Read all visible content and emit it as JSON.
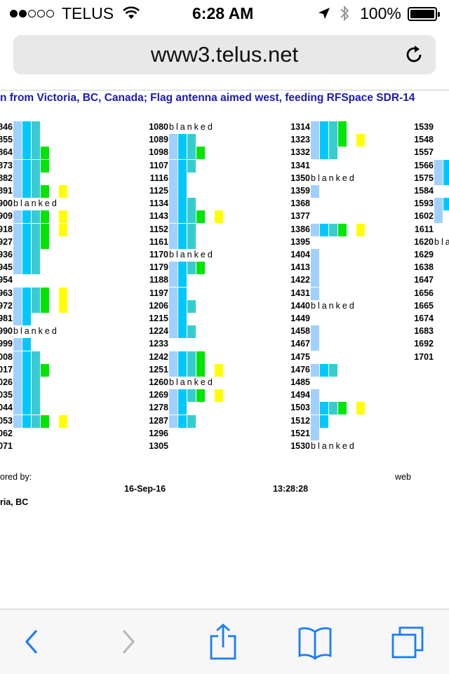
{
  "status": {
    "carrier": "TELUS",
    "signal_bars": 2,
    "time": "6:28 AM",
    "battery": "100%",
    "icons": [
      "wifi-icon",
      "location-arrow-icon",
      "bluetooth-icon",
      "battery-icon"
    ]
  },
  "browser": {
    "url": "www3.telus.net",
    "toolbar_icons": [
      "back-icon",
      "forward-icon",
      "share-icon",
      "bookmarks-icon",
      "tabs-icon"
    ]
  },
  "page": {
    "headline": "n from Victoria, BC, Canada; Flag antenna aimed west, feeding RFSpace SDR-14",
    "blank_text": "blanked",
    "colors": {
      "c1": "#9fd0ff",
      "c2": "#00c8ff",
      "c3": "#38ccd0",
      "c4": "#00e600",
      "c5": "#ffff00"
    },
    "columns": [
      {
        "rows": [
          {
            "freq": "846",
            "bars": [
              1,
              2,
              3
            ]
          },
          {
            "freq": "855",
            "bars": [
              1,
              2,
              3
            ]
          },
          {
            "freq": "864",
            "bars": [
              1,
              2,
              3,
              4
            ]
          },
          {
            "freq": "873",
            "bars": [
              1,
              2,
              3,
              4
            ]
          },
          {
            "freq": "882",
            "bars": [
              1,
              2,
              3
            ]
          },
          {
            "freq": "891",
            "bars": [
              1,
              2,
              3,
              4,
              0,
              5
            ]
          },
          {
            "freq": "900",
            "blank": true
          },
          {
            "freq": "909",
            "bars": [
              1,
              2,
              3,
              4,
              0,
              5
            ]
          },
          {
            "freq": "918",
            "bars": [
              1,
              2,
              3,
              4,
              0,
              5
            ]
          },
          {
            "freq": "927",
            "bars": [
              1,
              2,
              3,
              4
            ]
          },
          {
            "freq": "936",
            "bars": [
              1,
              2,
              3
            ]
          },
          {
            "freq": "945",
            "bars": [
              1,
              2,
              3
            ]
          },
          {
            "freq": "954",
            "bars": []
          },
          {
            "freq": "963",
            "bars": [
              1,
              2,
              3,
              4,
              0,
              5
            ]
          },
          {
            "freq": "972",
            "bars": [
              1,
              2,
              3,
              4,
              0,
              5
            ]
          },
          {
            "freq": "981",
            "bars": [
              1,
              2
            ]
          },
          {
            "freq": "990",
            "blank": true
          },
          {
            "freq": "999",
            "bars": [
              1,
              2
            ]
          },
          {
            "freq": "008",
            "bars": [
              1,
              2,
              3
            ]
          },
          {
            "freq": "017",
            "bars": [
              1,
              2,
              3,
              4
            ]
          },
          {
            "freq": "026",
            "bars": [
              1,
              2,
              3
            ]
          },
          {
            "freq": "035",
            "bars": [
              1,
              2,
              3
            ]
          },
          {
            "freq": "044",
            "bars": [
              1,
              2,
              3
            ]
          },
          {
            "freq": "053",
            "bars": [
              1,
              2,
              3,
              4,
              0,
              5
            ]
          },
          {
            "freq": "062",
            "bars": []
          },
          {
            "freq": "071",
            "bars": []
          }
        ]
      },
      {
        "rows": [
          {
            "freq": "1080",
            "blank": true
          },
          {
            "freq": "1089",
            "bars": [
              1,
              2,
              3
            ]
          },
          {
            "freq": "1098",
            "bars": [
              1,
              2,
              3,
              4
            ]
          },
          {
            "freq": "1107",
            "bars": [
              1,
              2,
              3
            ]
          },
          {
            "freq": "1116",
            "bars": [
              1,
              2
            ]
          },
          {
            "freq": "1125",
            "bars": [
              1,
              2
            ]
          },
          {
            "freq": "1134",
            "bars": [
              1,
              2,
              3
            ]
          },
          {
            "freq": "1143",
            "bars": [
              1,
              2,
              3,
              4,
              0,
              5
            ]
          },
          {
            "freq": "1152",
            "bars": [
              1,
              2,
              3
            ]
          },
          {
            "freq": "1161",
            "bars": [
              1,
              2,
              3
            ]
          },
          {
            "freq": "1170",
            "blank": true
          },
          {
            "freq": "1179",
            "bars": [
              1,
              2,
              3,
              4
            ]
          },
          {
            "freq": "1188",
            "bars": [
              1,
              2
            ]
          },
          {
            "freq": "1197",
            "bars": [
              1,
              2
            ]
          },
          {
            "freq": "1206",
            "bars": [
              1,
              2,
              3
            ]
          },
          {
            "freq": "1215",
            "bars": [
              1,
              2
            ]
          },
          {
            "freq": "1224",
            "bars": [
              1,
              2,
              3
            ]
          },
          {
            "freq": "1233",
            "bars": []
          },
          {
            "freq": "1242",
            "bars": [
              1,
              2,
              3,
              4
            ]
          },
          {
            "freq": "1251",
            "bars": [
              1,
              2,
              3,
              4,
              0,
              5
            ]
          },
          {
            "freq": "1260",
            "blank": true
          },
          {
            "freq": "1269",
            "bars": [
              1,
              2,
              3,
              4,
              0,
              5
            ]
          },
          {
            "freq": "1278",
            "bars": [
              1,
              2
            ]
          },
          {
            "freq": "1287",
            "bars": [
              1,
              2,
              3
            ]
          },
          {
            "freq": "1296",
            "bars": []
          },
          {
            "freq": "1305",
            "bars": []
          }
        ]
      },
      {
        "rows": [
          {
            "freq": "1314",
            "bars": [
              1,
              2,
              3,
              4
            ]
          },
          {
            "freq": "1323",
            "bars": [
              1,
              2,
              3,
              4,
              0,
              5
            ]
          },
          {
            "freq": "1332",
            "bars": [
              1,
              2,
              3
            ]
          },
          {
            "freq": "1341",
            "bars": []
          },
          {
            "freq": "1350",
            "blank": true
          },
          {
            "freq": "1359",
            "bars": [
              1
            ]
          },
          {
            "freq": "1368",
            "bars": []
          },
          {
            "freq": "1377",
            "bars": []
          },
          {
            "freq": "1386",
            "bars": [
              1,
              2,
              3,
              4,
              0,
              5
            ]
          },
          {
            "freq": "1395",
            "bars": []
          },
          {
            "freq": "1404",
            "bars": [
              1
            ]
          },
          {
            "freq": "1413",
            "bars": [
              1
            ]
          },
          {
            "freq": "1422",
            "bars": [
              1
            ]
          },
          {
            "freq": "1431",
            "bars": [
              1
            ]
          },
          {
            "freq": "1440",
            "blank": true
          },
          {
            "freq": "1449",
            "bars": []
          },
          {
            "freq": "1458",
            "bars": [
              1
            ]
          },
          {
            "freq": "1467",
            "bars": [
              1
            ]
          },
          {
            "freq": "1475",
            "bars": []
          },
          {
            "freq": "1476",
            "bars": [
              1,
              2,
              3
            ]
          },
          {
            "freq": "1485",
            "bars": []
          },
          {
            "freq": "1494",
            "bars": [
              1
            ]
          },
          {
            "freq": "1503",
            "bars": [
              1,
              2,
              3,
              4,
              0,
              5
            ]
          },
          {
            "freq": "1512",
            "bars": [
              1,
              2
            ]
          },
          {
            "freq": "1521",
            "bars": [
              1
            ]
          },
          {
            "freq": "1530",
            "blank": true
          }
        ]
      },
      {
        "rows": [
          {
            "freq": "1539",
            "bars": []
          },
          {
            "freq": "1548",
            "bars": []
          },
          {
            "freq": "1557",
            "bars": []
          },
          {
            "freq": "1566",
            "bars": [
              1,
              2,
              3
            ]
          },
          {
            "freq": "1575",
            "bars": [
              1,
              2,
              3
            ]
          },
          {
            "freq": "1584",
            "bars": []
          },
          {
            "freq": "1593",
            "bars": [
              1,
              2
            ]
          },
          {
            "freq": "1602",
            "bars": [
              1
            ]
          },
          {
            "freq": "1611",
            "bars": []
          },
          {
            "freq": "1620",
            "blank": true
          },
          {
            "freq": "1629",
            "bars": []
          },
          {
            "freq": "1638",
            "bars": []
          },
          {
            "freq": "1647",
            "bars": []
          },
          {
            "freq": "1656",
            "bars": []
          },
          {
            "freq": "1665",
            "bars": []
          },
          {
            "freq": "1674",
            "bars": []
          },
          {
            "freq": "1683",
            "bars": []
          },
          {
            "freq": "1692",
            "bars": []
          },
          {
            "freq": "1701",
            "bars": []
          }
        ]
      }
    ],
    "footer": {
      "sponsored": "ored by:",
      "web": "web",
      "date": "16-Sep-16",
      "time": "13:28:28",
      "location": "ria, BC"
    }
  }
}
